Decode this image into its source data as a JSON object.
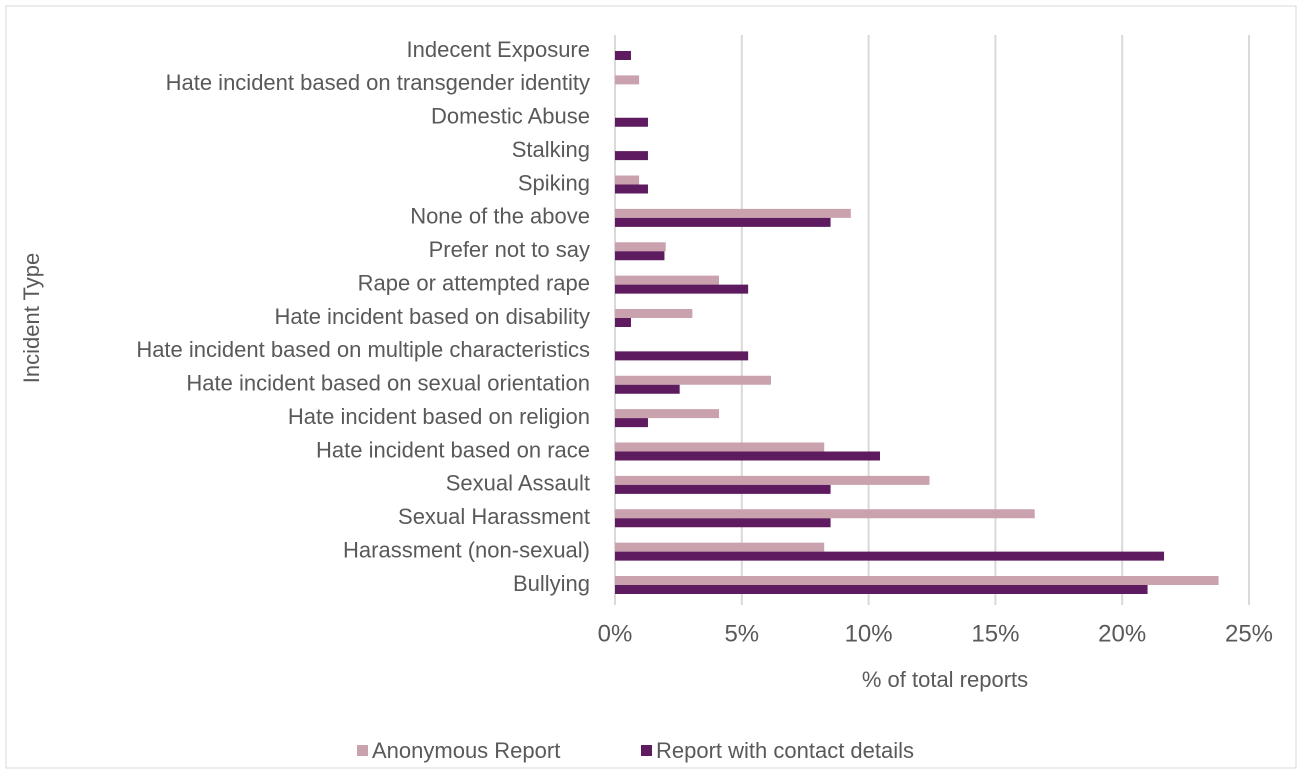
{
  "chart_data": {
    "type": "bar",
    "orientation": "horizontal",
    "x_label": "% of total reports",
    "y_label": "Incident Type",
    "categories": [
      "Indecent Exposure",
      "Hate incident based on transgender identity",
      "Domestic Abuse",
      "Stalking",
      "Spiking",
      "None of the above",
      "Prefer not to say",
      "Rape or attempted rape",
      "Hate incident based on disability",
      "Hate incident based on multiple characteristics",
      "Hate incident based on sexual orientation",
      "Hate incident based on religion",
      "Hate incident based on race",
      "Sexual Assault",
      "Sexual Harassment",
      "Harassment (non-sexual)",
      "Bullying"
    ],
    "series": [
      {
        "name": "Anonymous Report",
        "color": "#c9a2ad",
        "values": [
          0,
          0.95,
          0,
          0,
          0.95,
          9.3,
          2.0,
          4.1,
          3.05,
          0,
          6.15,
          4.1,
          8.25,
          12.4,
          16.55,
          8.25,
          23.8
        ]
      },
      {
        "name": "Report with contact details",
        "color": "#5e1b5f",
        "values": [
          0.63,
          0,
          1.3,
          1.3,
          1.3,
          8.5,
          1.95,
          5.25,
          0.63,
          5.25,
          2.55,
          1.3,
          10.45,
          8.5,
          8.5,
          21.65,
          21.0
        ]
      }
    ],
    "xlim": [
      0,
      25
    ],
    "xticks": [
      {
        "value": 0,
        "label": "0%"
      },
      {
        "value": 5,
        "label": "5%"
      },
      {
        "value": 10,
        "label": "10%"
      },
      {
        "value": 15,
        "label": "15%"
      },
      {
        "value": 20,
        "label": "20%"
      },
      {
        "value": 25,
        "label": "25%"
      }
    ],
    "grid": true,
    "legend": "bottom"
  }
}
